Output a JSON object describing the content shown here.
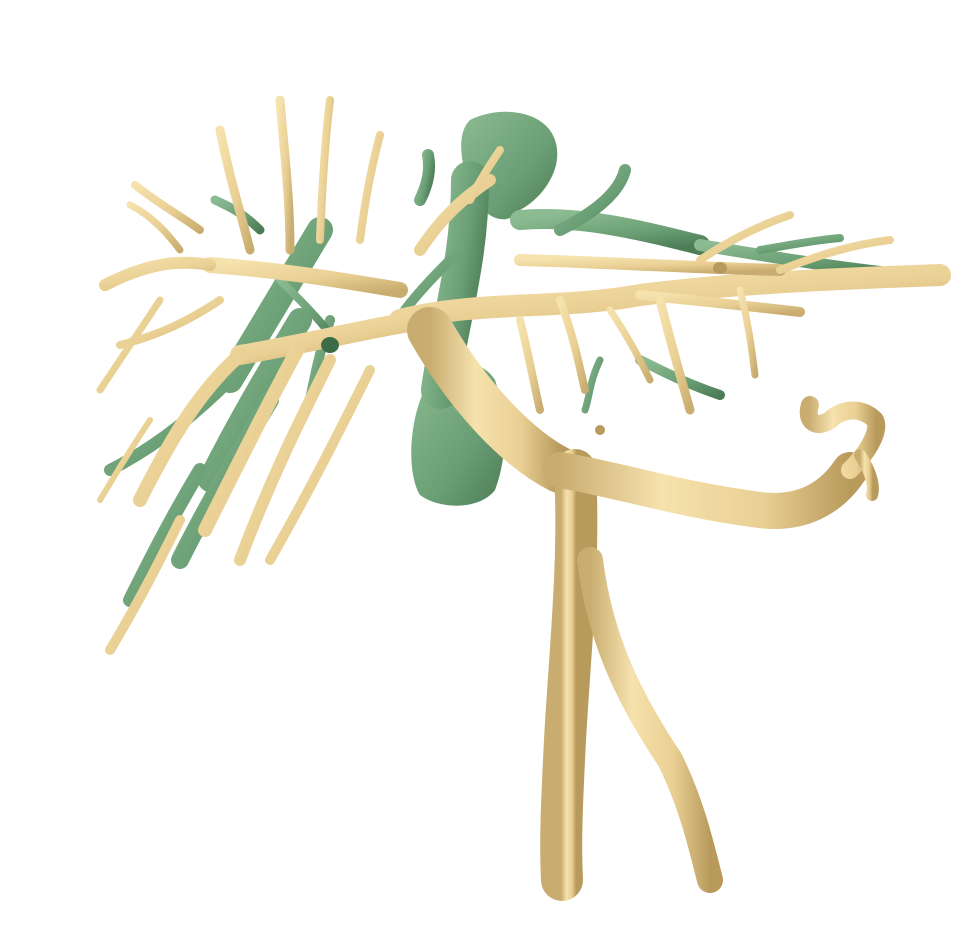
{
  "image": {
    "subject": "3d-rendered-vessel-tree",
    "colors": {
      "background": "#ffffff",
      "vessel_tan": "#e9cf93",
      "vessel_tan_light": "#f6e2ad",
      "vessel_tan_shadow": "#b89a5c",
      "vessel_green": "#6a9e74",
      "vessel_green_light": "#8cbb92",
      "vessel_green_shadow": "#3e6b47"
    }
  }
}
